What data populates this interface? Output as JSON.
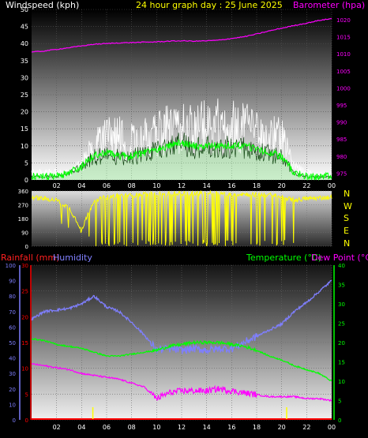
{
  "header": {
    "windspeed_label": "Windspeed (kph)",
    "title": "24 hour graph day : 25 June 2025",
    "barometer_label": "Barometer (hpa)"
  },
  "lower_header": {
    "rainfall_label": "Rainfall (mm)",
    "humidity_label": "Humidity",
    "temperature_label": "Temperature (°C)",
    "dewpoint_label": "Dew Point (°C)"
  },
  "compass_letters": [
    "N",
    "W",
    "S",
    "E",
    "N"
  ],
  "colors": {
    "windspeed": "#ffffff",
    "wind_avg": "#00ff00",
    "wind_fill": "#9fe09f",
    "barometer": "#ff00ff",
    "direction": "#ffff00",
    "humidity": "#7f7fff",
    "temperature": "#00ff00",
    "dewpoint": "#ff00ff",
    "rainfall": "#ff0000",
    "rain_bar": "#ffff00",
    "title_yellow": "#ffff00"
  },
  "chart_data": [
    {
      "type": "line",
      "name": "wind-barometer",
      "x_ticks": [
        "02",
        "04",
        "06",
        "08",
        "10",
        "12",
        "14",
        "16",
        "18",
        "20",
        "22",
        "00"
      ],
      "y_left_ticks": [
        0,
        5,
        10,
        15,
        20,
        25,
        30,
        35,
        40,
        45,
        50
      ],
      "ylim_left": [
        0,
        50
      ],
      "y_right_ticks": [
        975,
        980,
        985,
        990,
        995,
        1000,
        1005,
        1010,
        1015,
        1020
      ],
      "ylim_right": [
        973,
        1023
      ],
      "grid": true,
      "series": [
        {
          "name": "Windspeed (kph)",
          "axis": "left",
          "x": [
            0,
            1,
            2,
            3,
            4,
            5,
            6,
            7,
            8,
            9,
            10,
            11,
            12,
            13,
            14,
            15,
            16,
            17,
            18,
            19,
            20,
            21,
            22,
            23,
            24
          ],
          "values": [
            3,
            3,
            3,
            3,
            7,
            15,
            17,
            17,
            16,
            17,
            19,
            20,
            21,
            21,
            22,
            22,
            22,
            21,
            20,
            18,
            17,
            5,
            3,
            2,
            2
          ]
        },
        {
          "name": "Average wind",
          "axis": "left",
          "x": [
            0,
            1,
            2,
            3,
            4,
            5,
            6,
            7,
            8,
            9,
            10,
            11,
            12,
            13,
            14,
            15,
            16,
            17,
            18,
            19,
            20,
            21,
            22,
            23,
            24
          ],
          "values": [
            1,
            1,
            1,
            2,
            4,
            7,
            8,
            7,
            7,
            8,
            9,
            10,
            11,
            10,
            10,
            10,
            10,
            10,
            9,
            8,
            7,
            2,
            1,
            1,
            1
          ]
        },
        {
          "name": "Barometer (hpa)",
          "axis": "right",
          "x": [
            0,
            1,
            2,
            3,
            4,
            5,
            6,
            7,
            8,
            9,
            10,
            11,
            12,
            13,
            14,
            15,
            16,
            17,
            18,
            19,
            20,
            21,
            22,
            23,
            24
          ],
          "values": [
            1010.5,
            1010.8,
            1011.3,
            1011.8,
            1012.3,
            1012.8,
            1013,
            1013.2,
            1013.3,
            1013.4,
            1013.5,
            1013.7,
            1013.8,
            1013.7,
            1013.8,
            1014,
            1014.5,
            1015,
            1015.8,
            1016.7,
            1017.5,
            1018.3,
            1019,
            1019.8,
            1020.3
          ]
        }
      ]
    },
    {
      "type": "line",
      "name": "wind-direction",
      "x_ticks": [
        "02",
        "04",
        "06",
        "08",
        "10",
        "12",
        "14",
        "16",
        "18",
        "20",
        "22",
        "00"
      ],
      "y_ticks": [
        0,
        90,
        180,
        270,
        360
      ],
      "ylim": [
        0,
        360
      ],
      "series": [
        {
          "name": "Wind direction",
          "x": [
            0,
            1,
            2,
            3,
            4,
            5,
            6,
            7,
            8,
            9,
            10,
            11,
            12,
            13,
            14,
            15,
            16,
            17,
            18,
            19,
            20,
            21,
            22,
            23,
            24
          ],
          "values": [
            320,
            310,
            300,
            250,
            110,
            300,
            320,
            330,
            330,
            340,
            340,
            340,
            345,
            345,
            345,
            345,
            340,
            340,
            335,
            335,
            320,
            300,
            310,
            315,
            320
          ]
        }
      ]
    },
    {
      "type": "line",
      "name": "humidity-temperature",
      "x_ticks": [
        "02",
        "04",
        "06",
        "08",
        "10",
        "12",
        "14",
        "16",
        "18",
        "20",
        "22",
        "00"
      ],
      "y_humidity_ticks": [
        0,
        10,
        20,
        30,
        40,
        50,
        60,
        70,
        80,
        90,
        100
      ],
      "ylim_humidity": [
        0,
        100
      ],
      "y_rain_ticks": [
        0,
        5,
        10,
        15,
        20,
        25,
        30
      ],
      "ylim_rain": [
        0,
        30
      ],
      "y_temp_ticks": [
        0,
        5,
        10,
        15,
        20,
        25,
        30,
        35,
        40
      ],
      "ylim_temp": [
        0,
        40
      ],
      "series": [
        {
          "name": "Humidity",
          "axis": "humidity",
          "x": [
            0,
            1,
            2,
            3,
            4,
            5,
            6,
            7,
            8,
            9,
            10,
            11,
            12,
            13,
            14,
            15,
            16,
            17,
            18,
            19,
            20,
            21,
            22,
            23,
            24
          ],
          "values": [
            65,
            70,
            71,
            72,
            75,
            80,
            73,
            70,
            63,
            55,
            45,
            46,
            45,
            46,
            45,
            46,
            46,
            50,
            54,
            58,
            62,
            70,
            76,
            83,
            90
          ]
        },
        {
          "name": "Temperature (°C)",
          "axis": "temp",
          "x": [
            0,
            1,
            2,
            3,
            4,
            5,
            6,
            7,
            8,
            9,
            10,
            11,
            12,
            13,
            14,
            15,
            16,
            17,
            18,
            19,
            20,
            21,
            22,
            23,
            24
          ],
          "values": [
            21,
            20.5,
            19.5,
            19,
            18.5,
            17.5,
            16.5,
            16.5,
            17,
            17.5,
            18,
            19,
            19.5,
            20,
            20,
            20,
            19.5,
            19,
            18,
            16.5,
            15.5,
            14,
            13,
            12,
            10
          ]
        },
        {
          "name": "Dew Point (°C)",
          "axis": "temp",
          "x": [
            0,
            1,
            2,
            3,
            4,
            5,
            6,
            7,
            8,
            9,
            10,
            11,
            12,
            13,
            14,
            15,
            16,
            17,
            18,
            19,
            20,
            21,
            22,
            23,
            24
          ],
          "values": [
            14.5,
            14,
            13.5,
            13,
            12,
            11.5,
            11,
            10.5,
            9.5,
            8.5,
            5.5,
            7,
            7.5,
            7.5,
            7.5,
            8,
            7.5,
            7,
            6.5,
            6,
            6,
            6,
            5.5,
            5.5,
            5
          ]
        },
        {
          "name": "Rainfall (mm)",
          "axis": "rain",
          "x": [
            0,
            24
          ],
          "values": [
            0,
            0
          ]
        }
      ],
      "rain_marks_x": [
        4.9,
        20.4
      ]
    }
  ]
}
